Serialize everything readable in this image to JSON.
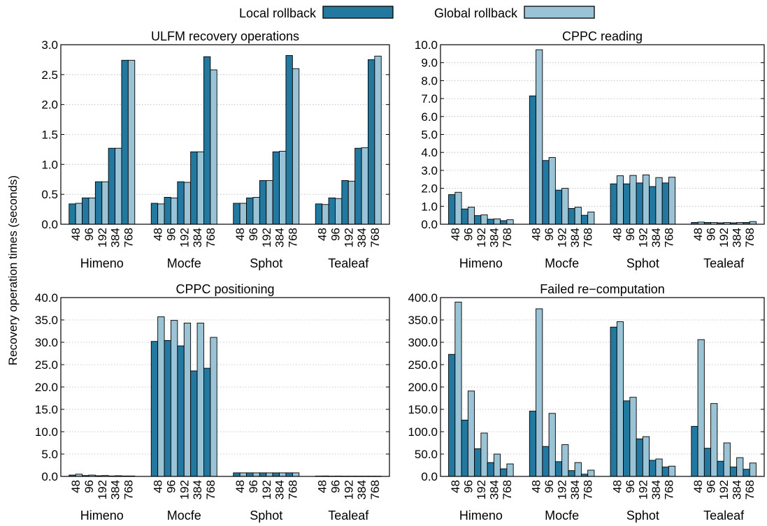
{
  "legend": {
    "series": [
      {
        "name": "Local rollback",
        "color": "#2378a0"
      },
      {
        "name": "Global rollback",
        "color": "#9ac3d6"
      }
    ]
  },
  "ylabel": "Recovery operation times (seconds)",
  "chart_data": [
    {
      "type": "bar",
      "title": "ULFM recovery operations",
      "groups": [
        "Himeno",
        "Mocfe",
        "Sphot",
        "Tealeaf"
      ],
      "categories": [
        "48",
        "96",
        "192",
        "384",
        "768"
      ],
      "ylim": [
        0,
        3.0
      ],
      "yticks": [
        "0.0",
        "0.5",
        "1.0",
        "1.5",
        "2.0",
        "2.5",
        "3.0"
      ],
      "grid": true,
      "series": [
        {
          "name": "Local rollback",
          "values": [
            [
              0.34,
              0.44,
              0.71,
              1.27,
              2.74
            ],
            [
              0.35,
              0.45,
              0.71,
              1.21,
              2.8
            ],
            [
              0.35,
              0.44,
              0.73,
              1.21,
              2.82
            ],
            [
              0.34,
              0.44,
              0.73,
              1.27,
              2.75
            ]
          ]
        },
        {
          "name": "Global rollback",
          "values": [
            [
              0.35,
              0.44,
              0.71,
              1.27,
              2.74
            ],
            [
              0.34,
              0.44,
              0.7,
              1.21,
              2.58
            ],
            [
              0.35,
              0.45,
              0.73,
              1.22,
              2.6
            ],
            [
              0.33,
              0.43,
              0.72,
              1.28,
              2.81
            ]
          ]
        }
      ]
    },
    {
      "type": "bar",
      "title": "CPPC reading",
      "groups": [
        "Himeno",
        "Mocfe",
        "Sphot",
        "Tealeaf"
      ],
      "categories": [
        "48",
        "96",
        "192",
        "384",
        "768"
      ],
      "ylim": [
        0,
        10.0
      ],
      "yticks": [
        "0.0",
        "1.0",
        "2.0",
        "3.0",
        "4.0",
        "5.0",
        "6.0",
        "7.0",
        "8.0",
        "9.0",
        "10.0"
      ],
      "grid": true,
      "series": [
        {
          "name": "Local rollback",
          "values": [
            [
              1.65,
              0.85,
              0.48,
              0.28,
              0.2
            ],
            [
              7.15,
              3.55,
              1.9,
              0.88,
              0.5
            ],
            [
              2.25,
              2.25,
              2.3,
              2.1,
              2.3
            ],
            [
              0.1,
              0.1,
              0.08,
              0.08,
              0.1
            ]
          ]
        },
        {
          "name": "Global rollback",
          "values": [
            [
              1.78,
              0.95,
              0.52,
              0.3,
              0.25
            ],
            [
              9.72,
              3.72,
              2.0,
              0.95,
              0.68
            ],
            [
              2.7,
              2.72,
              2.75,
              2.6,
              2.62
            ],
            [
              0.12,
              0.1,
              0.1,
              0.1,
              0.15
            ]
          ]
        }
      ]
    },
    {
      "type": "bar",
      "title": "CPPC positioning",
      "groups": [
        "Himeno",
        "Mocfe",
        "Sphot",
        "Tealeaf"
      ],
      "categories": [
        "48",
        "96",
        "192",
        "384",
        "768"
      ],
      "ylim": [
        0,
        40.0
      ],
      "yticks": [
        "0.0",
        "5.0",
        "10.0",
        "15.0",
        "20.0",
        "25.0",
        "30.0",
        "35.0",
        "40.0"
      ],
      "grid": true,
      "series": [
        {
          "name": "Local rollback",
          "values": [
            [
              0.3,
              0.2,
              0.15,
              0.1,
              0.1
            ],
            [
              30.2,
              30.4,
              29.2,
              23.6,
              24.2
            ],
            [
              0.8,
              0.8,
              0.8,
              0.8,
              0.8
            ],
            [
              0.08,
              0.06,
              0.05,
              0.05,
              0.05
            ]
          ]
        },
        {
          "name": "Global rollback",
          "values": [
            [
              0.5,
              0.3,
              0.2,
              0.15,
              0.1
            ],
            [
              35.7,
              34.9,
              34.3,
              34.3,
              31.1
            ],
            [
              0.8,
              0.8,
              0.8,
              0.8,
              0.8
            ],
            [
              0.1,
              0.08,
              0.06,
              0.05,
              0.05
            ]
          ]
        }
      ]
    },
    {
      "type": "bar",
      "title": "Failed re−computation",
      "groups": [
        "Himeno",
        "Mocfe",
        "Sphot",
        "Tealeaf"
      ],
      "categories": [
        "48",
        "96",
        "192",
        "384",
        "768"
      ],
      "ylim": [
        0,
        400.0
      ],
      "yticks": [
        "0.0",
        "50.0",
        "100.0",
        "150.0",
        "200.0",
        "250.0",
        "300.0",
        "350.0",
        "400.0"
      ],
      "grid": true,
      "series": [
        {
          "name": "Local rollback",
          "values": [
            [
              273,
              126,
              62,
              31,
              17
            ],
            [
              146,
              67,
              33,
              13,
              5
            ],
            [
              334,
              169,
              84,
              36,
              21
            ],
            [
              112,
              63,
              34,
              21,
              16
            ]
          ]
        },
        {
          "name": "Global rollback",
          "values": [
            [
              390,
              191,
              97,
              50,
              28
            ],
            [
              375,
              141,
              71,
              31,
              14
            ],
            [
              346,
              177,
              89,
              39,
              23
            ],
            [
              306,
              163,
              75,
              42,
              30
            ]
          ]
        }
      ]
    }
  ]
}
